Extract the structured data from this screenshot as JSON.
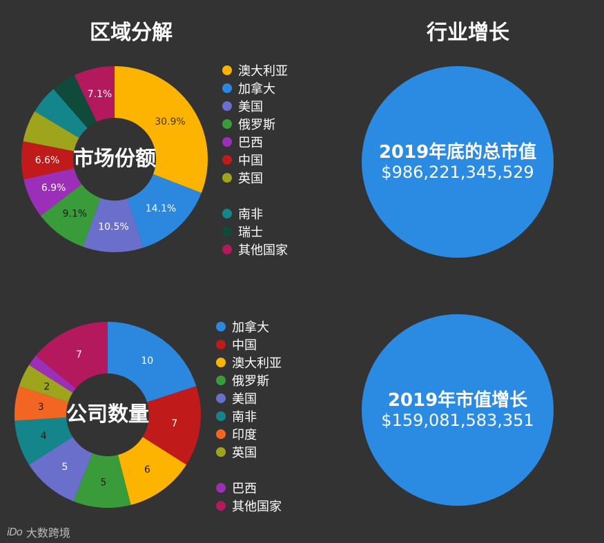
{
  "headings": {
    "left": "区域分解",
    "right": "行业增长"
  },
  "charts": [
    {
      "center_label": "市场份额",
      "legend": [
        {
          "name": "澳大利亚",
          "color": "#fdb400"
        },
        {
          "name": "加拿大",
          "color": "#2c88df"
        },
        {
          "name": "美国",
          "color": "#6a6fcb"
        },
        {
          "name": "俄罗斯",
          "color": "#3a9b3a"
        },
        {
          "name": "巴西",
          "color": "#9c2fb8"
        },
        {
          "name": "中国",
          "color": "#c01a1a"
        },
        {
          "name": "英国",
          "color": "#9ea41c"
        },
        {
          "gap": true
        },
        {
          "name": "南非",
          "color": "#15858c"
        },
        {
          "name": "瑞士",
          "color": "#0f4a3a"
        },
        {
          "name": "其他国家",
          "color": "#b3195c"
        }
      ]
    },
    {
      "center_label": "公司数量",
      "legend": [
        {
          "name": "加拿大",
          "color": "#2c88df"
        },
        {
          "name": "中国",
          "color": "#c01a1a"
        },
        {
          "name": "澳大利亚",
          "color": "#fdb400"
        },
        {
          "name": "俄罗斯",
          "color": "#3a9b3a"
        },
        {
          "name": "美国",
          "color": "#6a6fcb"
        },
        {
          "name": "南非",
          "color": "#15858c"
        },
        {
          "name": "印度",
          "color": "#f26522"
        },
        {
          "name": "英国",
          "color": "#9ea41c"
        },
        {
          "gap": true
        },
        {
          "name": "巴西",
          "color": "#9c2fb8"
        },
        {
          "name": "其他国家",
          "color": "#b3195c"
        }
      ]
    }
  ],
  "chart_data": [
    {
      "type": "pie",
      "series": [
        {
          "name": "澳大利亚",
          "value": 30.9,
          "label": "30.9%",
          "color": "#fdb400",
          "label_color": "#4a3400"
        },
        {
          "name": "加拿大",
          "value": 14.1,
          "label": "14.1%",
          "color": "#2c88df",
          "label_color": "#ffffff"
        },
        {
          "name": "美国",
          "value": 10.5,
          "label": "10.5%",
          "color": "#6a6fcb",
          "label_color": "#ffffff"
        },
        {
          "name": "俄罗斯",
          "value": 9.1,
          "label": "9.1%",
          "color": "#3a9b3a",
          "label_color": "#1a1a1a"
        },
        {
          "name": "巴西",
          "value": 6.9,
          "label": "6.9%",
          "color": "#9c2fb8",
          "label_color": "#ffffff"
        },
        {
          "name": "中国",
          "value": 6.6,
          "label": "6.6%",
          "color": "#c01a1a",
          "label_color": "#ffffff"
        },
        {
          "name": "英国",
          "value": 5.5,
          "label": "",
          "color": "#9ea41c",
          "label_color": "#ffffff"
        },
        {
          "name": "南非",
          "value": 5.0,
          "label": "",
          "color": "#15858c",
          "label_color": "#ffffff"
        },
        {
          "name": "瑞士",
          "value": 4.3,
          "label": "",
          "color": "#0f4a3a",
          "label_color": "#ffffff"
        },
        {
          "name": "其他国家",
          "value": 7.1,
          "label": "7.1%",
          "color": "#b3195c",
          "label_color": "#ffffff"
        }
      ]
    },
    {
      "type": "pie",
      "series": [
        {
          "name": "加拿大",
          "value": 10,
          "label": "10",
          "color": "#2c88df",
          "label_color": "#ffffff"
        },
        {
          "name": "中国",
          "value": 7,
          "label": "7",
          "color": "#c01a1a",
          "label_color": "#ffffff"
        },
        {
          "name": "澳大利亚",
          "value": 6,
          "label": "6",
          "color": "#fdb400",
          "label_color": "#1a1a1a"
        },
        {
          "name": "俄罗斯",
          "value": 5,
          "label": "5",
          "color": "#3a9b3a",
          "label_color": "#1a1a1a"
        },
        {
          "name": "美国",
          "value": 5,
          "label": "5",
          "color": "#6a6fcb",
          "label_color": "#ffffff"
        },
        {
          "name": "南非",
          "value": 4,
          "label": "4",
          "color": "#15858c",
          "label_color": "#1a1a1a"
        },
        {
          "name": "印度",
          "value": 3,
          "label": "3",
          "color": "#f26522",
          "label_color": "#1a1a1a"
        },
        {
          "name": "英国",
          "value": 2,
          "label": "2",
          "color": "#9ea41c",
          "label_color": "#1a1a1a"
        },
        {
          "name": "巴西",
          "value": 1,
          "label": "",
          "color": "#9c2fb8",
          "label_color": "#ffffff"
        },
        {
          "name": "其他国家",
          "value": 7,
          "label": "7",
          "color": "#b3195c",
          "label_color": "#ffffff"
        }
      ]
    }
  ],
  "growth": [
    {
      "label": "2019年底的总市值",
      "value": "$986,221,345,529"
    },
    {
      "label": "2019年市值增长",
      "value": "$159,081,583,351"
    }
  ],
  "bubble_color": "#2b8ae2",
  "watermark": {
    "logo": "iDo",
    "text": "大数跨境"
  }
}
